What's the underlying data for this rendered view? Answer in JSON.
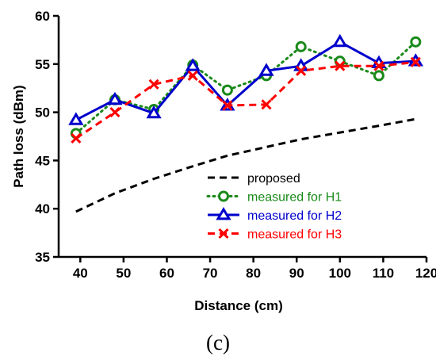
{
  "chart_data": {
    "type": "line",
    "xlabel": "Distance (cm)",
    "ylabel": "Path loss (dBm)",
    "xlim": [
      35,
      120
    ],
    "ylim": [
      35,
      60
    ],
    "xticks": [
      40,
      50,
      60,
      70,
      80,
      90,
      100,
      110,
      120
    ],
    "yticks": [
      35,
      40,
      45,
      50,
      55,
      60
    ],
    "legend_position": "bottom-right",
    "grid": false,
    "series": [
      {
        "name": "proposed",
        "style": "dashed",
        "marker": "none",
        "color": "#000000",
        "x": [
          39,
          48,
          57,
          66,
          74,
          83,
          91,
          100,
          109,
          117.5
        ],
        "y": [
          39.7,
          41.6,
          43.1,
          44.4,
          45.5,
          46.4,
          47.2,
          47.9,
          48.6,
          49.3
        ]
      },
      {
        "name": "measured for H1",
        "style": "dotted",
        "marker": "circle",
        "color": "#1a8a1a",
        "x": [
          39,
          48,
          57,
          66,
          74,
          83,
          91,
          100,
          109,
          117.5
        ],
        "y": [
          47.8,
          51.3,
          50.3,
          54.9,
          52.3,
          53.8,
          56.8,
          55.3,
          53.8,
          57.3
        ]
      },
      {
        "name": "measured for H2",
        "style": "solid",
        "marker": "triangle",
        "color": "#0000cc",
        "x": [
          39,
          48,
          57,
          66,
          74,
          83,
          91,
          100,
          109,
          117.5
        ],
        "y": [
          49.2,
          51.3,
          49.9,
          54.8,
          50.7,
          54.3,
          54.8,
          57.3,
          55.1,
          55.3
        ]
      },
      {
        "name": "measured for H3",
        "style": "dashed",
        "marker": "x",
        "color": "#ff0000",
        "x": [
          39,
          48,
          57,
          66,
          74,
          83,
          91,
          100,
          109,
          117.5
        ],
        "y": [
          47.3,
          50.0,
          52.9,
          53.8,
          50.7,
          50.8,
          54.3,
          54.8,
          54.8,
          55.2
        ]
      }
    ]
  },
  "panel_label": "(c)"
}
